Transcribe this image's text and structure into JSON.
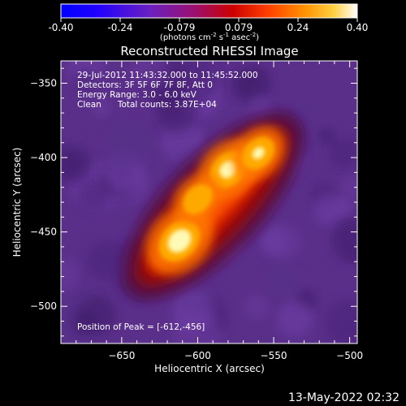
{
  "colorbar": {
    "ticks": [
      "-0.40",
      "-0.24",
      "-0.079",
      "0.079",
      "0.24",
      "0.40"
    ],
    "units_main": "(photons cm",
    "units_sup1": "-2",
    "units_mid": " s",
    "units_sup2": "-1",
    "units_end": " asec",
    "units_sup3": "-2",
    "units_close": ")"
  },
  "chart_data": {
    "type": "heatmap",
    "title": "Reconstructed RHESSI Image",
    "xlabel": "Heliocentric X (arcsec)",
    "ylabel": "Heliocentric Y (arcsec)",
    "xlim": [
      -690,
      -495
    ],
    "ylim": [
      -525,
      -335
    ],
    "xticks": [
      -650,
      -600,
      -550,
      -500
    ],
    "yticks": [
      -350,
      -400,
      -450,
      -500
    ],
    "color_range": [
      -0.4,
      0.4
    ],
    "colormap": [
      "#0000ff",
      "#3a00ff",
      "#7a1ab0",
      "#a01060",
      "#c00000",
      "#ff3000",
      "#ff8000",
      "#ffc000",
      "#ffffa0",
      "#ffffff"
    ],
    "background_color": "#5e3390",
    "sources": [
      {
        "x": -612,
        "y": -456,
        "intensity": 0.4,
        "label": "peak"
      },
      {
        "x": -580,
        "y": -408,
        "intensity": 0.33
      },
      {
        "x": -560,
        "y": -397,
        "intensity": 0.26
      },
      {
        "x": -600,
        "y": -428,
        "intensity": 0.22
      }
    ],
    "annotations": [
      "29-Jul-2012 11:43:32.000 to 11:45:52.000",
      "Detectors: 3F 5F 6F 7F 8F, Att 0",
      "Energy Range: 3.0 - 6.0 keV",
      "Clean      Total counts: 3.87E+04"
    ],
    "peak_text": "Position of Peak = [-612,-456]"
  },
  "footer_date": "13-May-2022 02:32"
}
